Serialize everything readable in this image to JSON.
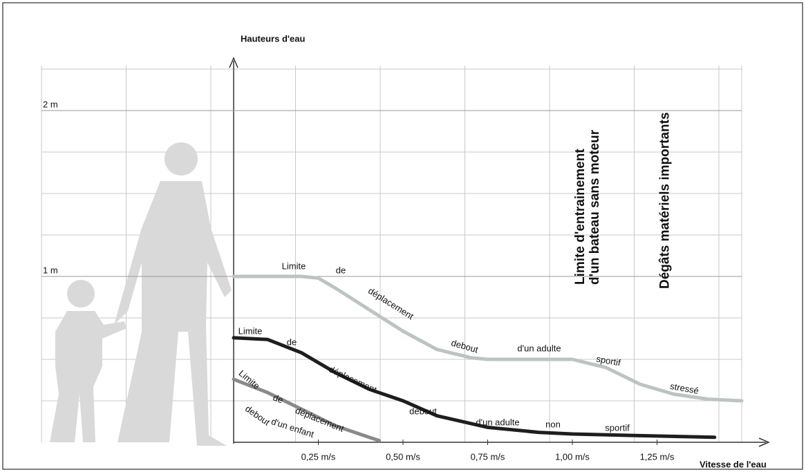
{
  "chart_data": {
    "type": "line",
    "x_label": "Vitesse de l'eau",
    "y_label": "Hauteurs d'eau",
    "xlim": [
      0,
      1.5
    ],
    "ylim": [
      0,
      2.25
    ],
    "xticks": [
      {
        "value": 0.25,
        "label": "0,25 m/s"
      },
      {
        "value": 0.5,
        "label": "0,50 m/s"
      },
      {
        "value": 0.75,
        "label": "0,75 m/s"
      },
      {
        "value": 1.0,
        "label": "1,00 m/s"
      },
      {
        "value": 1.25,
        "label": "1,25 m/s"
      }
    ],
    "yticks": [
      {
        "value": 1,
        "label": "1 m"
      },
      {
        "value": 2,
        "label": "2 m"
      }
    ],
    "series": [
      {
        "color": "#bcc4c1",
        "words": [
          "Limite",
          "de",
          "déplacement",
          "debout",
          "d'un adulte",
          "sportif",
          "stressé"
        ],
        "x": [
          0,
          0.1,
          0.2,
          0.25,
          0.3,
          0.4,
          0.5,
          0.6,
          0.7,
          0.75,
          0.8,
          0.9,
          1.0,
          1.1,
          1.2,
          1.3,
          1.4,
          1.5
        ],
        "values": [
          1,
          1,
          1,
          0.99,
          0.93,
          0.8,
          0.67,
          0.56,
          0.51,
          0.5,
          0.5,
          0.5,
          0.5,
          0.45,
          0.35,
          0.29,
          0.26,
          0.25
        ]
      },
      {
        "color": "#1e1e1e",
        "words": [
          "Limite",
          "de",
          "déplacement",
          "debout",
          "d'un adulte",
          "non",
          "sportif"
        ],
        "x": [
          0,
          0.1,
          0.2,
          0.3,
          0.4,
          0.5,
          0.6,
          0.75,
          0.9,
          1.0,
          1.2,
          1.42
        ],
        "values": [
          0.63,
          0.62,
          0.54,
          0.42,
          0.32,
          0.25,
          0.16,
          0.09,
          0.06,
          0.05,
          0.04,
          0.03
        ]
      },
      {
        "color": "#8a8a8a",
        "words": [
          "Limite",
          "de",
          "déplacement",
          "debout",
          "d'un enfant"
        ],
        "x": [
          0,
          0.1,
          0.2,
          0.3,
          0.4,
          0.43
        ],
        "values": [
          0.38,
          0.3,
          0.2,
          0.1,
          0.03,
          0.01
        ]
      }
    ],
    "vlines": [
      {
        "x": 1.0,
        "label": [
          "Limite d'entrainement",
          "d'un bateau sans moteur"
        ]
      },
      {
        "x": 1.25,
        "label": [
          "Dégâts matériels importants"
        ]
      }
    ]
  }
}
